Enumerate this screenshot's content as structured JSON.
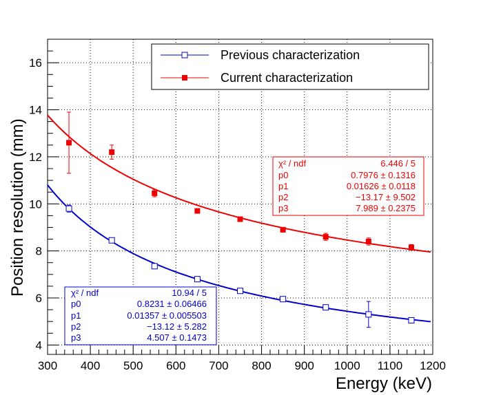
{
  "chart_data": {
    "type": "scatter",
    "title": "",
    "xlabel": "Energy (keV)",
    "ylabel": "Position resolution (mm)",
    "xlim": [
      300,
      1200
    ],
    "ylim": [
      3.6,
      17
    ],
    "grid": true,
    "legend": "top-right",
    "x_ticks": [
      "300",
      "400",
      "500",
      "600",
      "700",
      "800",
      "900",
      "1000",
      "1100",
      "1200"
    ],
    "y_ticks": [
      "4",
      "6",
      "8",
      "10",
      "12",
      "14",
      "16"
    ],
    "series": [
      {
        "name": "Previous characterization",
        "color": "#0000cc",
        "marker": "open-square",
        "x": [
          350,
          450,
          550,
          650,
          750,
          850,
          950,
          1050,
          1150
        ],
        "y": [
          9.8,
          8.45,
          7.35,
          6.8,
          6.3,
          5.95,
          5.6,
          5.3,
          5.05
        ],
        "yerr": [
          0.15,
          0.1,
          0.1,
          0.08,
          0.08,
          0.08,
          0.1,
          0.55,
          0.08
        ],
        "fit": {
          "p0": 0.8231,
          "p1": 0.01357,
          "p2": -13.12,
          "p3": 4.507
        },
        "stats": {
          "chi2_label": "χ² / ndf",
          "chi2_value": "10.94 / 5",
          "params": [
            {
              "name": "p0",
              "value": "0.8231 ± 0.06466"
            },
            {
              "name": "p1",
              "value": "0.01357 ± 0.005503"
            },
            {
              "name": "p2",
              "value": "−13.12 ± 5.282"
            },
            {
              "name": "p3",
              "value": "4.507 ± 0.1473"
            }
          ]
        }
      },
      {
        "name": "Current characterization",
        "color": "#ee0000",
        "marker": "filled-square",
        "x": [
          350,
          450,
          550,
          650,
          750,
          850,
          950,
          1050,
          1150
        ],
        "y": [
          12.6,
          12.2,
          10.45,
          9.7,
          9.35,
          8.9,
          8.6,
          8.4,
          8.15
        ],
        "yerr": [
          1.3,
          0.3,
          0.15,
          0.1,
          0.1,
          0.1,
          0.15,
          0.15,
          0.12
        ],
        "fit": {
          "p0": 0.7976,
          "p1": 0.01626,
          "p2": -13.17,
          "p3": 7.989
        },
        "stats": {
          "chi2_label": "χ² / ndf",
          "chi2_value": "6.446 / 5",
          "params": [
            {
              "name": "p0",
              "value": "0.7976 ± 0.1316"
            },
            {
              "name": "p1",
              "value": "0.01626 ± 0.0118"
            },
            {
              "name": "p2",
              "value": "−13.17 ± 9.502"
            },
            {
              "name": "p3",
              "value": "7.989 ± 0.2375"
            }
          ]
        }
      }
    ]
  }
}
